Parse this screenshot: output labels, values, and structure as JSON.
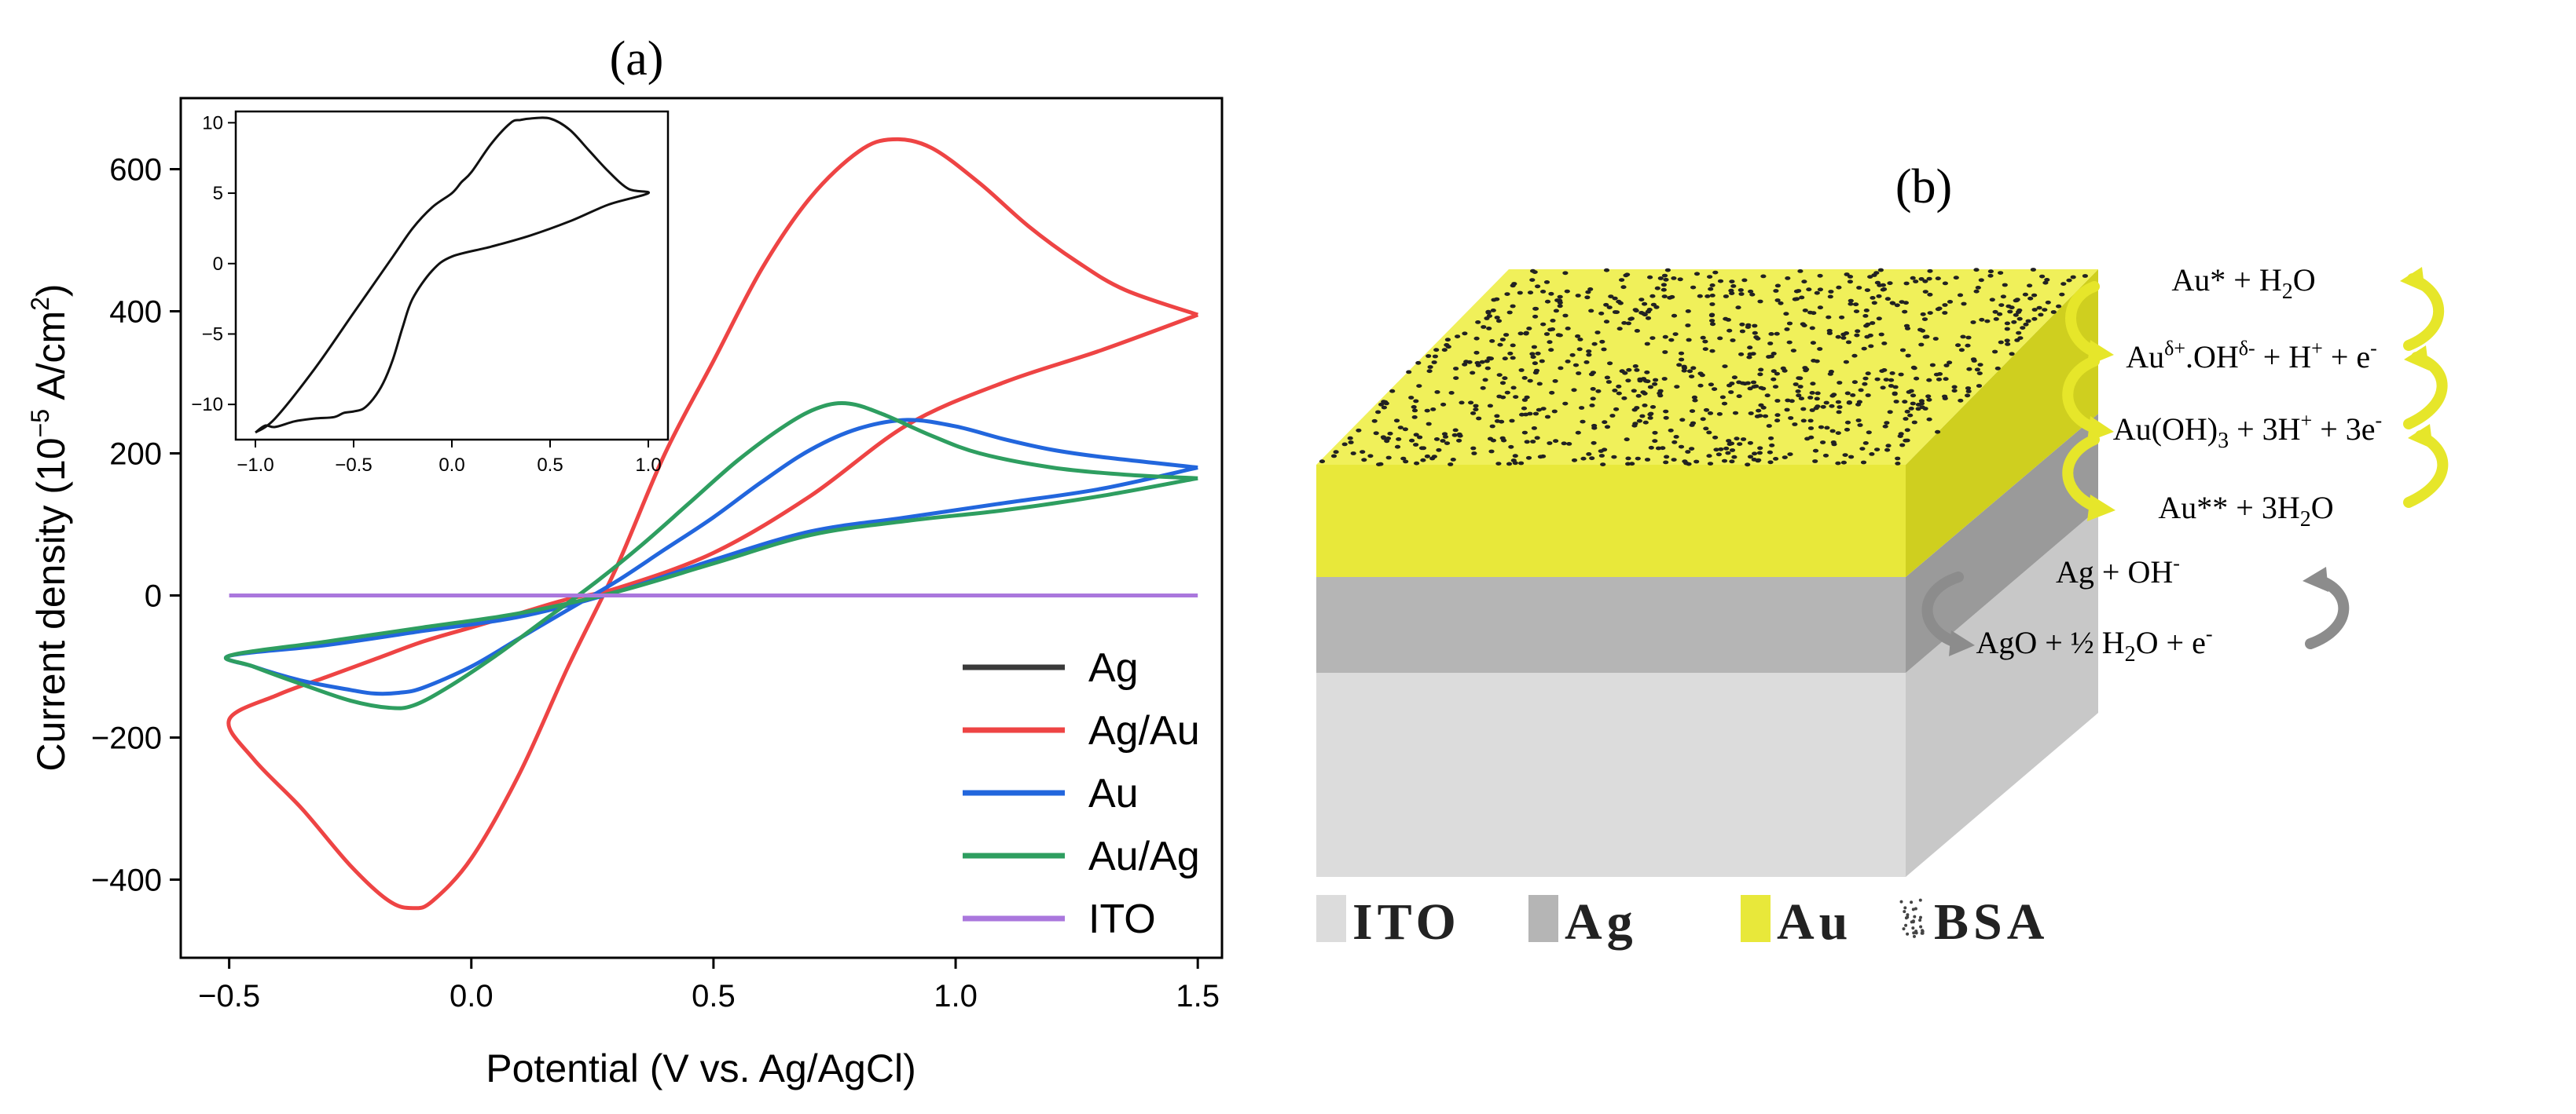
{
  "panel_a": {
    "label": "(a)",
    "chart_data": {
      "type": "line",
      "title": "",
      "xlabel": "Potential (V vs. Ag/AgCl)",
      "ylabel_main": "Current density (10",
      "ylabel_exp": "−5",
      "ylabel_tail": " A/cm",
      "ylabel_sq": "2",
      "ylabel_close": ")",
      "xlim": [
        -0.6,
        1.55
      ],
      "ylim": [
        -510,
        700
      ],
      "xticks": [
        -0.5,
        0.0,
        0.5,
        1.0,
        1.5
      ],
      "xtick_labels": [
        "−0.5",
        "0.0",
        "0.5",
        "1.0",
        "1.5"
      ],
      "yticks": [
        -400,
        -200,
        0,
        200,
        400,
        600
      ],
      "ytick_labels": [
        "−400",
        "−200",
        "0",
        "200",
        "400",
        "600"
      ],
      "legend": {
        "position": "bottom-right"
      },
      "series": [
        {
          "name": "Ag",
          "color": "#3a3a3a",
          "x": [],
          "y": []
        },
        {
          "name": "Ag/Au",
          "color": "#ee4444",
          "x": [
            1.5,
            1.3,
            1.1,
            0.9,
            0.7,
            0.5,
            0.3,
            0.2,
            0.1,
            0.0,
            -0.1,
            -0.2,
            -0.3,
            -0.4,
            -0.5,
            -0.45,
            -0.35,
            -0.25,
            -0.17,
            -0.12,
            -0.08,
            0.0,
            0.1,
            0.2,
            0.3,
            0.4,
            0.5,
            0.6,
            0.7,
            0.8,
            0.87,
            0.95,
            1.05,
            1.15,
            1.25,
            1.35,
            1.5
          ],
          "y": [
            395,
            345,
            300,
            240,
            140,
            60,
            10,
            -5,
            -25,
            -45,
            -65,
            -90,
            -115,
            -140,
            -175,
            -230,
            -300,
            -380,
            -430,
            -440,
            -430,
            -370,
            -250,
            -100,
            40,
            200,
            330,
            460,
            560,
            625,
            642,
            630,
            580,
            520,
            470,
            430,
            395
          ]
        },
        {
          "name": "Au",
          "color": "#2266dd",
          "x": [
            1.5,
            1.3,
            1.1,
            0.9,
            0.7,
            0.5,
            0.3,
            0.1,
            -0.1,
            -0.3,
            -0.5,
            -0.45,
            -0.35,
            -0.25,
            -0.2,
            -0.15,
            -0.1,
            0.0,
            0.1,
            0.2,
            0.3,
            0.4,
            0.5,
            0.6,
            0.7,
            0.8,
            0.9,
            1.0,
            1.1,
            1.2,
            1.3,
            1.5
          ],
          "y": [
            180,
            150,
            130,
            110,
            90,
            50,
            5,
            -30,
            -50,
            -70,
            -85,
            -100,
            -120,
            -133,
            -138,
            -137,
            -130,
            -100,
            -60,
            -20,
            20,
            65,
            110,
            160,
            205,
            235,
            247,
            238,
            220,
            205,
            195,
            180
          ]
        },
        {
          "name": "Au/Ag",
          "color": "#2e9e60",
          "x": [
            1.5,
            1.3,
            1.1,
            0.9,
            0.7,
            0.5,
            0.3,
            0.1,
            -0.1,
            -0.3,
            -0.5,
            -0.45,
            -0.35,
            -0.25,
            -0.17,
            -0.12,
            -0.05,
            0.05,
            0.15,
            0.25,
            0.35,
            0.45,
            0.55,
            0.65,
            0.72,
            0.78,
            0.85,
            0.95,
            1.05,
            1.2,
            1.35,
            1.5
          ],
          "y": [
            165,
            140,
            120,
            105,
            85,
            45,
            5,
            -25,
            -45,
            -65,
            -85,
            -100,
            -125,
            -148,
            -158,
            -155,
            -130,
            -85,
            -35,
            15,
            70,
            130,
            190,
            240,
            265,
            270,
            255,
            225,
            200,
            180,
            170,
            165
          ]
        },
        {
          "name": "ITO",
          "color": "#aa77dd",
          "x": [
            -0.5,
            1.5
          ],
          "y": [
            0,
            0
          ]
        }
      ],
      "inset": {
        "type": "line",
        "xlim": [
          -1.1,
          1.1
        ],
        "ylim": [
          -12.5,
          10.8
        ],
        "xticks": [
          -1.0,
          -0.5,
          0.0,
          0.5,
          1.0
        ],
        "xtick_labels": [
          "−1.0",
          "−0.5",
          "0.0",
          "0.5",
          "1.0"
        ],
        "yticks": [
          -10,
          -5,
          0,
          5,
          10
        ],
        "ytick_labels": [
          "−10",
          "−5",
          "0",
          "5",
          "10"
        ],
        "color": "#111111",
        "x": [
          -1.0,
          -0.95,
          -0.9,
          -0.8,
          -0.7,
          -0.6,
          -0.55,
          -0.5,
          -0.45,
          -0.4,
          -0.35,
          -0.3,
          -0.25,
          -0.2,
          -0.1,
          0.0,
          0.2,
          0.4,
          0.6,
          0.8,
          1.0,
          0.9,
          0.8,
          0.7,
          0.6,
          0.5,
          0.4,
          0.35,
          0.3,
          0.2,
          0.1,
          0.05,
          0.0,
          -0.1,
          -0.2,
          -0.3,
          -0.5,
          -0.7,
          -0.9,
          -1.0
        ],
        "y": [
          -12,
          -11.5,
          -11.6,
          -11.2,
          -11.0,
          -10.9,
          -10.6,
          -10.5,
          -10.3,
          -9.6,
          -8.5,
          -6.8,
          -4.5,
          -2.5,
          -0.5,
          0.5,
          1.2,
          2.0,
          3.0,
          4.2,
          5.0,
          5.3,
          6.5,
          8.0,
          9.5,
          10.3,
          10.3,
          10.2,
          10.0,
          8.5,
          6.5,
          5.8,
          5.0,
          4.0,
          2.5,
          0.5,
          -3.5,
          -7.5,
          -11.0,
          -12.0
        ]
      }
    }
  },
  "panel_b": {
    "label": "(b)",
    "reactions": {
      "r1_base": "Au* + H",
      "r1_sub": "2",
      "r1_tail": "O",
      "r2_base": "Au",
      "r2_sup1": "δ+",
      "r2_mid": ".OH",
      "r2_sup2": "δ-",
      "r2_mid2": " + H",
      "r2_sup3": "+",
      "r2_mid3": " + e",
      "r2_sup4": "-",
      "r3_base": "Au(OH)",
      "r3_sub": "3",
      "r3_mid": " + 3H",
      "r3_sup1": "+",
      "r3_mid2": " + 3e",
      "r3_sup2": "-",
      "r4_base": "Au** + 3H",
      "r4_sub": "2",
      "r4_tail": "O",
      "r5_base": "Ag + OH",
      "r5_sup": "-",
      "r6_base": "AgO + ½ H",
      "r6_sub": "2",
      "r6_mid": "O + e",
      "r6_sup": "-"
    },
    "legend": [
      {
        "label": "ITO",
        "color": "#dcdcdc"
      },
      {
        "label": "Ag",
        "color": "#b5b5b5"
      },
      {
        "label": "Au",
        "color": "#e8e83a"
      },
      {
        "label": "BSA",
        "color": "#ffffff"
      }
    ]
  }
}
